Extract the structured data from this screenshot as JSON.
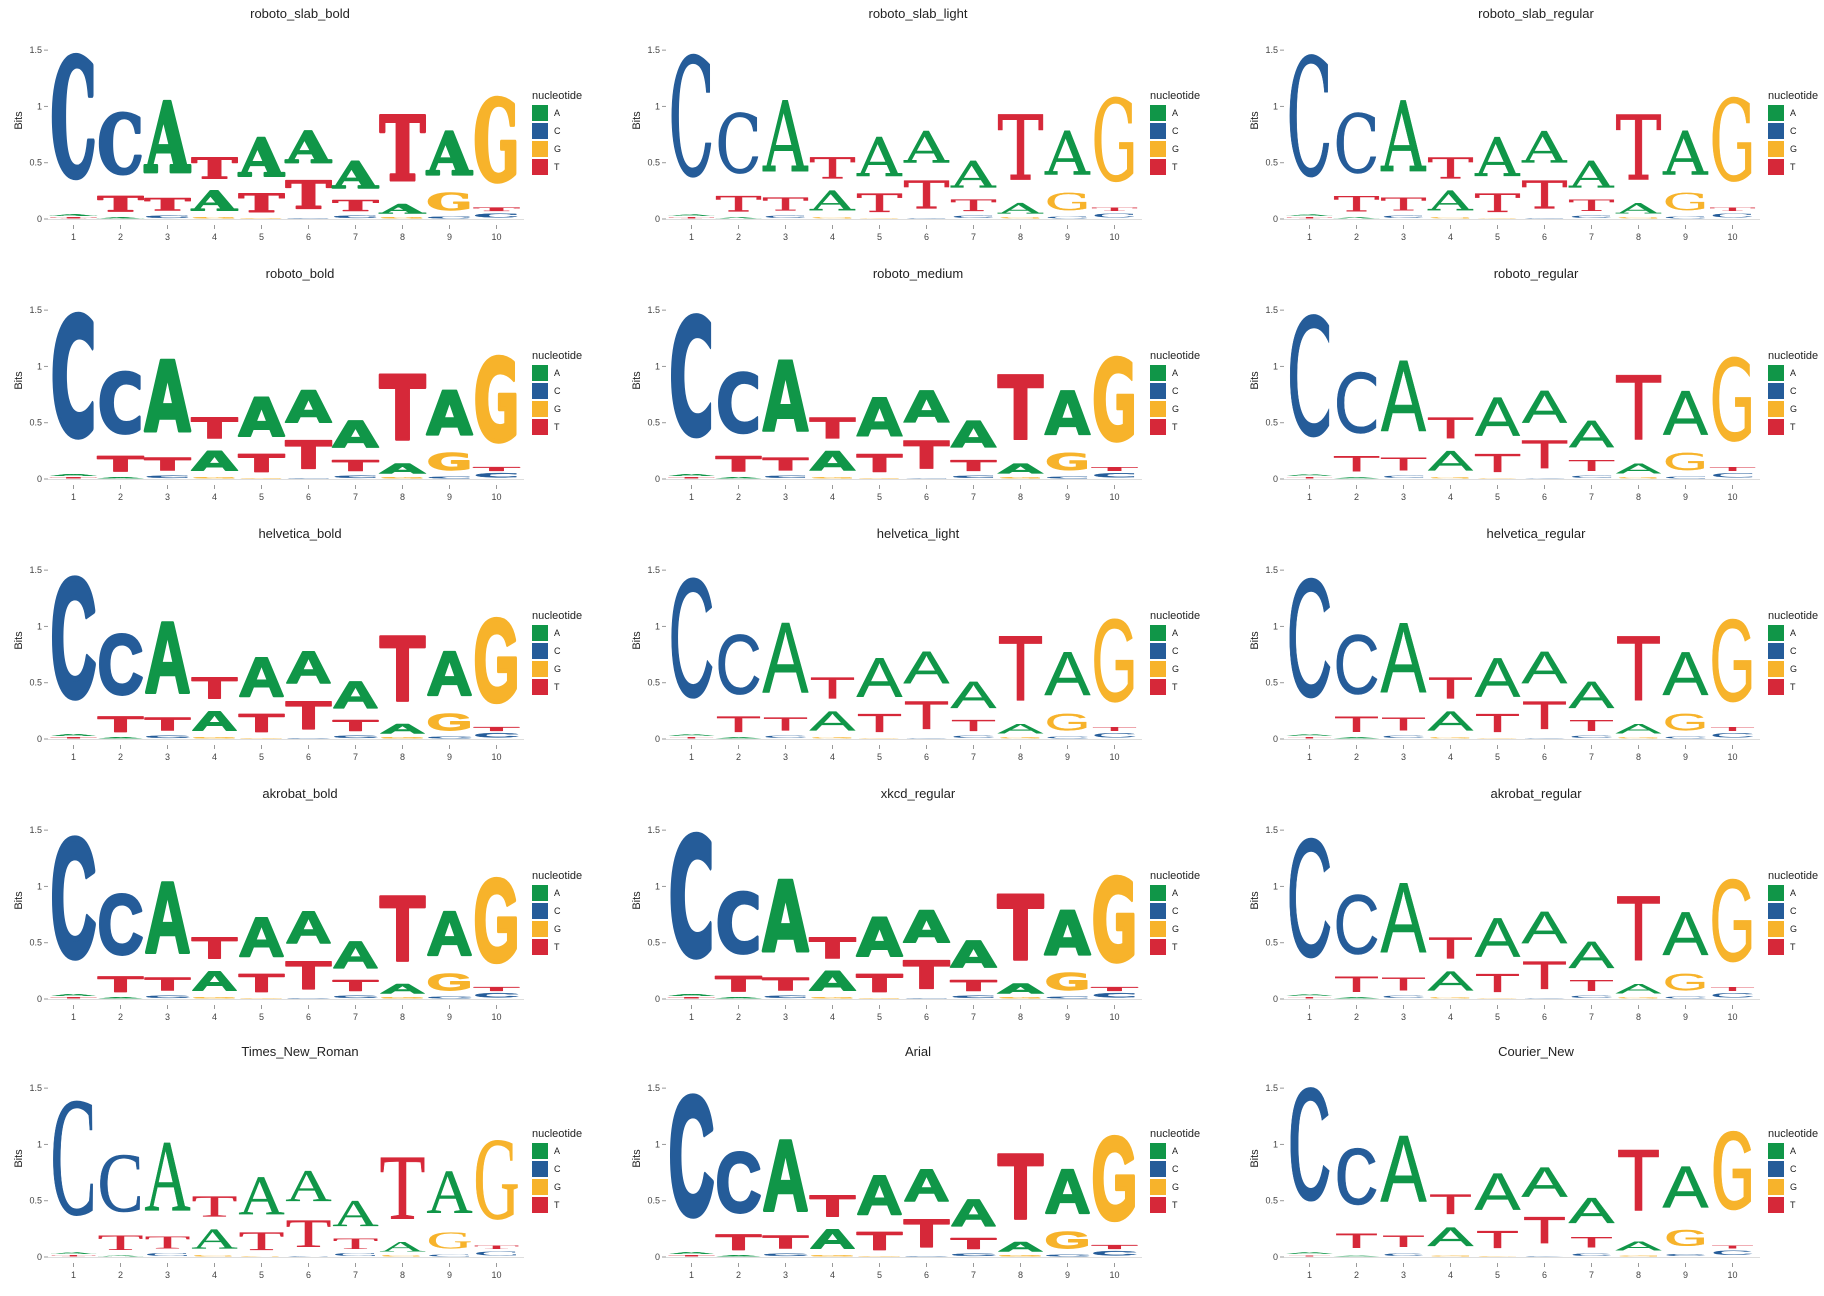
{
  "chart_data": {
    "type": "sequence-logo",
    "ylabel": "Bits",
    "ylim": [
      0,
      1.75
    ],
    "yticks": [
      0,
      0.5,
      1,
      1.5
    ],
    "ytick_labels": [
      "0",
      "0.5",
      "1",
      "1.5"
    ],
    "positions": [
      "1",
      "2",
      "3",
      "4",
      "5",
      "6",
      "7",
      "8",
      "9",
      "10"
    ],
    "legend": {
      "title": "nucleotide",
      "position": "right",
      "items": [
        {
          "label": "A",
          "color": "#109648"
        },
        {
          "label": "C",
          "color": "#255C99"
        },
        {
          "label": "G",
          "color": "#F7B32B"
        },
        {
          "label": "T",
          "color": "#D62839"
        }
      ]
    },
    "stacks": [
      [
        {
          "base": "T",
          "value": 0.02
        },
        {
          "base": "A",
          "value": 0.03
        },
        {
          "base": "C",
          "value": 1.68
        }
      ],
      [
        {
          "base": "A",
          "value": 0.02
        },
        {
          "base": "T",
          "value": 0.22
        },
        {
          "base": "C",
          "value": 0.84
        }
      ],
      [
        {
          "base": "C",
          "value": 0.04
        },
        {
          "base": "T",
          "value": 0.18
        },
        {
          "base": "A",
          "value": 1.0
        }
      ],
      [
        {
          "base": "G",
          "value": 0.02
        },
        {
          "base": "A",
          "value": 0.28
        },
        {
          "base": "T",
          "value": 0.3
        }
      ],
      [
        {
          "base": "G",
          "value": 0.01
        },
        {
          "base": "T",
          "value": 0.26
        },
        {
          "base": "A",
          "value": 0.55
        }
      ],
      [
        {
          "base": "C",
          "value": 0.01
        },
        {
          "base": "T",
          "value": 0.4
        },
        {
          "base": "A",
          "value": 0.45
        }
      ],
      [
        {
          "base": "C",
          "value": 0.04
        },
        {
          "base": "T",
          "value": 0.16
        },
        {
          "base": "A",
          "value": 0.38
        }
      ],
      [
        {
          "base": "G",
          "value": 0.02
        },
        {
          "base": "A",
          "value": 0.14
        },
        {
          "base": "T",
          "value": 0.92
        }
      ],
      [
        {
          "base": "C",
          "value": 0.03
        },
        {
          "base": "G",
          "value": 0.24
        },
        {
          "base": "A",
          "value": 0.62
        }
      ],
      [
        {
          "base": "C",
          "value": 0.06
        },
        {
          "base": "T",
          "value": 0.05
        },
        {
          "base": "G",
          "value": 1.16
        }
      ]
    ],
    "panels": [
      {
        "title": "roboto_slab_bold",
        "weight": "bold",
        "family": "DejaVu Serif"
      },
      {
        "title": "roboto_slab_light",
        "weight": "light",
        "family": "DejaVu Serif"
      },
      {
        "title": "roboto_slab_regular",
        "weight": "regular",
        "family": "DejaVu Serif"
      },
      {
        "title": "roboto_bold",
        "weight": "bold",
        "family": "DejaVu Sans"
      },
      {
        "title": "roboto_medium",
        "weight": "medium",
        "family": "DejaVu Sans"
      },
      {
        "title": "roboto_regular",
        "weight": "regular",
        "family": "DejaVu Sans"
      },
      {
        "title": "helvetica_bold",
        "weight": "bold",
        "family": "Liberation Sans"
      },
      {
        "title": "helvetica_light",
        "weight": "light",
        "family": "Liberation Sans"
      },
      {
        "title": "helvetica_regular",
        "weight": "regular",
        "family": "Liberation Sans"
      },
      {
        "title": "akrobat_bold",
        "weight": "bold",
        "family": "Liberation Sans"
      },
      {
        "title": "xkcd_regular",
        "weight": "bold",
        "family": "DejaVu Sans"
      },
      {
        "title": "akrobat_regular",
        "weight": "regular",
        "family": "Liberation Sans"
      },
      {
        "title": "Times_New_Roman",
        "weight": "regular",
        "family": "Liberation Serif"
      },
      {
        "title": "Arial",
        "weight": "bold",
        "family": "Liberation Sans"
      },
      {
        "title": "Courier_New",
        "weight": "regular",
        "family": "Liberation Mono"
      }
    ]
  }
}
